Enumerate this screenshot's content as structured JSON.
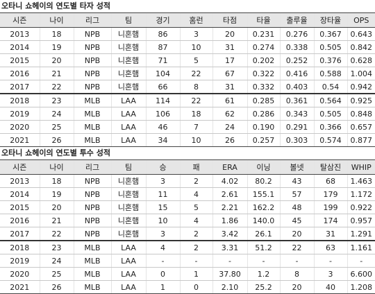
{
  "batting": {
    "title": "오타니 쇼헤이의 연도별 타자 성적",
    "headers": [
      "시즌",
      "나이",
      "리그",
      "팀",
      "경기",
      "홈런",
      "타점",
      "타율",
      "출루율",
      "장타율",
      "OPS"
    ],
    "rows": [
      [
        "2013",
        "18",
        "NPB",
        "니혼햄",
        "86",
        "3",
        "20",
        "0.231",
        "0.276",
        "0.367",
        "0.643"
      ],
      [
        "2014",
        "19",
        "NPB",
        "니혼햄",
        "87",
        "10",
        "31",
        "0.274",
        "0.338",
        "0.505",
        "0.842"
      ],
      [
        "2015",
        "20",
        "NPB",
        "니혼햄",
        "71",
        "5",
        "17",
        "0.202",
        "0.252",
        "0.376",
        "0.628"
      ],
      [
        "2016",
        "21",
        "NPB",
        "니혼햄",
        "104",
        "22",
        "67",
        "0.322",
        "0.416",
        "0.588",
        "1.004"
      ],
      [
        "2017",
        "22",
        "NPB",
        "니혼햄",
        "66",
        "8",
        "31",
        "0.332",
        "0.403",
        "0.54",
        "0.942"
      ],
      [
        "2018",
        "23",
        "MLB",
        "LAA",
        "114",
        "22",
        "61",
        "0.285",
        "0.361",
        "0.564",
        "0.925"
      ],
      [
        "2019",
        "24",
        "MLB",
        "LAA",
        "106",
        "18",
        "62",
        "0.286",
        "0.343",
        "0.505",
        "0.848"
      ],
      [
        "2020",
        "25",
        "MLB",
        "LAA",
        "46",
        "7",
        "24",
        "0.190",
        "0.291",
        "0.366",
        "0.657"
      ],
      [
        "2021",
        "26",
        "MLB",
        "LAA",
        "34",
        "10",
        "26",
        "0.257",
        "0.303",
        "0.574",
        "0.877"
      ]
    ]
  },
  "pitching": {
    "title": "오타니 쇼헤이의 연도별 투수 성적",
    "headers": [
      "시즌",
      "나이",
      "리그",
      "팀",
      "승",
      "패",
      "ERA",
      "이닝",
      "볼넷",
      "탈삼진",
      "WHIP"
    ],
    "rows": [
      [
        "2013",
        "18",
        "NPB",
        "니혼햄",
        "3",
        "2",
        "4.02",
        "80.2",
        "43",
        "68",
        "1.463"
      ],
      [
        "2014",
        "19",
        "NPB",
        "니혼햄",
        "11",
        "4",
        "2.61",
        "155.1",
        "57",
        "179",
        "1.172"
      ],
      [
        "2015",
        "20",
        "NPB",
        "니혼햄",
        "15",
        "5",
        "2.21",
        "162.2",
        "48",
        "199",
        "0.922"
      ],
      [
        "2016",
        "21",
        "NPB",
        "니혼햄",
        "10",
        "4",
        "1.86",
        "140.0",
        "45",
        "174",
        "0.957"
      ],
      [
        "2017",
        "22",
        "NPB",
        "니혼햄",
        "3",
        "2",
        "3.42",
        "26.1",
        "20",
        "31",
        "1.291"
      ],
      [
        "2018",
        "23",
        "MLB",
        "LAA",
        "4",
        "2",
        "3.31",
        "51.2",
        "22",
        "63",
        "1.161"
      ],
      [
        "2019",
        "24",
        "MLB",
        "LAA",
        "-",
        "-",
        "-",
        "-",
        "-",
        "-",
        "-"
      ],
      [
        "2020",
        "25",
        "MLB",
        "LAA",
        "0",
        "1",
        "37.80",
        "1.2",
        "8",
        "3",
        "6.600"
      ],
      [
        "2021",
        "26",
        "MLB",
        "LAA",
        "1",
        "0",
        "2.10",
        "25.2",
        "20",
        "40",
        "1.208"
      ]
    ]
  }
}
